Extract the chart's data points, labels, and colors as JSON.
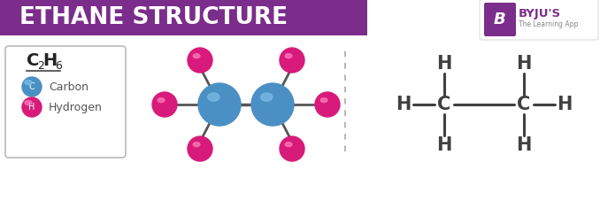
{
  "title": "ETHANE STRUCTURE",
  "title_bg_color": "#7B2D8B",
  "title_text_color": "#FFFFFF",
  "bg_color": "#FFFFFF",
  "carbon_color": "#4A90C4",
  "hydrogen_color": "#D81B7A",
  "legend_carbon_label": "Carbon",
  "legend_hydrogen_label": "Hydrogen",
  "bond_color": "#555555",
  "struct_label_color": "#404040",
  "dashed_line_color": "#AAAAAA",
  "byju_purple": "#7B2D8B"
}
